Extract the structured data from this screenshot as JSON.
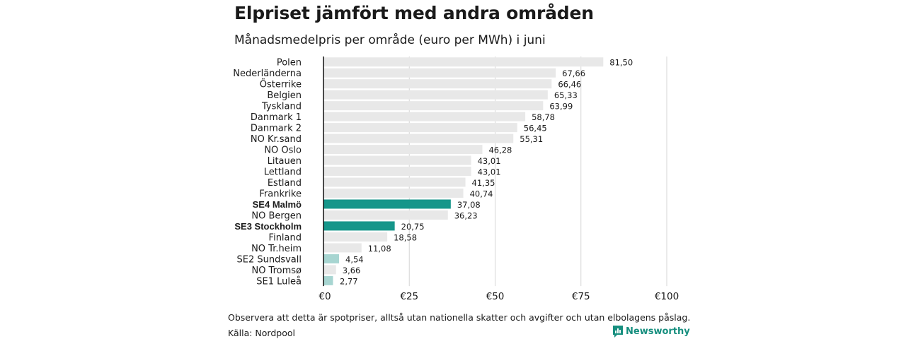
{
  "title": "Elpriset jämfört med andra områden",
  "subtitle": "Månadsmedelpris per område (euro per MWh) i juni",
  "note": "Observera att detta är spotpriser, alltså utan nationella skatter och avgifter och utan elbolagens påslag.",
  "source": "Källa: Nordpool",
  "brand": "Newsworthy",
  "colors": {
    "default_bar": "#e8e8e8",
    "highlight_bar": "#16968a",
    "light_highlight_bar": "#a7d5d1",
    "axis": "#111111",
    "grid": "#d6d6d6",
    "brand": "#178f7f"
  },
  "chart_data": {
    "type": "bar",
    "orientation": "horizontal",
    "title": "Elpriset jämfört med andra områden",
    "subtitle": "Månadsmedelpris per område (euro per MWh) i juni",
    "xlim": [
      0,
      100
    ],
    "x_ticks": [
      0,
      25,
      50,
      75,
      100
    ],
    "x_tick_labels": [
      "€0",
      "€25",
      "€50",
      "€75",
      "€100"
    ],
    "grid": true,
    "categories": [
      "Polen",
      "Nederländerna",
      "Österrike",
      "Belgien",
      "Tyskland",
      "Danmark  1",
      "Danmark  2",
      "NO Kr.sand",
      "NO Oslo",
      "Litauen",
      "Lettland",
      "Estland",
      "Frankrike",
      "SE4 Malmö",
      "NO Bergen",
      "SE3 Stockholm",
      "Finland",
      "NO Tr.heim",
      "SE2  Sundsvall",
      "NO Tromsø",
      "SE1  Luleå"
    ],
    "values": [
      81.5,
      67.66,
      66.46,
      65.33,
      63.99,
      58.78,
      56.45,
      55.31,
      46.28,
      43.01,
      43.01,
      41.35,
      40.74,
      37.08,
      36.23,
      20.75,
      18.58,
      11.08,
      4.54,
      3.66,
      2.77
    ],
    "value_labels": [
      "81,50",
      "67,66",
      "66,46",
      "65,33",
      "63,99",
      "58,78",
      "56,45",
      "55,31",
      "46,28",
      "43,01",
      "43,01",
      "41,35",
      "40,74",
      "37,08",
      "36,23",
      "20,75",
      "18,58",
      "11,08",
      "4,54",
      "3,66",
      "2,77"
    ],
    "highlight": [
      "default",
      "default",
      "default",
      "default",
      "default",
      "default",
      "default",
      "default",
      "default",
      "default",
      "default",
      "default",
      "default",
      "strong",
      "default",
      "strong",
      "default",
      "default",
      "light",
      "default",
      "light"
    ],
    "bold_labels": [
      "SE4 Malmö",
      "SE3 Stockholm"
    ]
  }
}
